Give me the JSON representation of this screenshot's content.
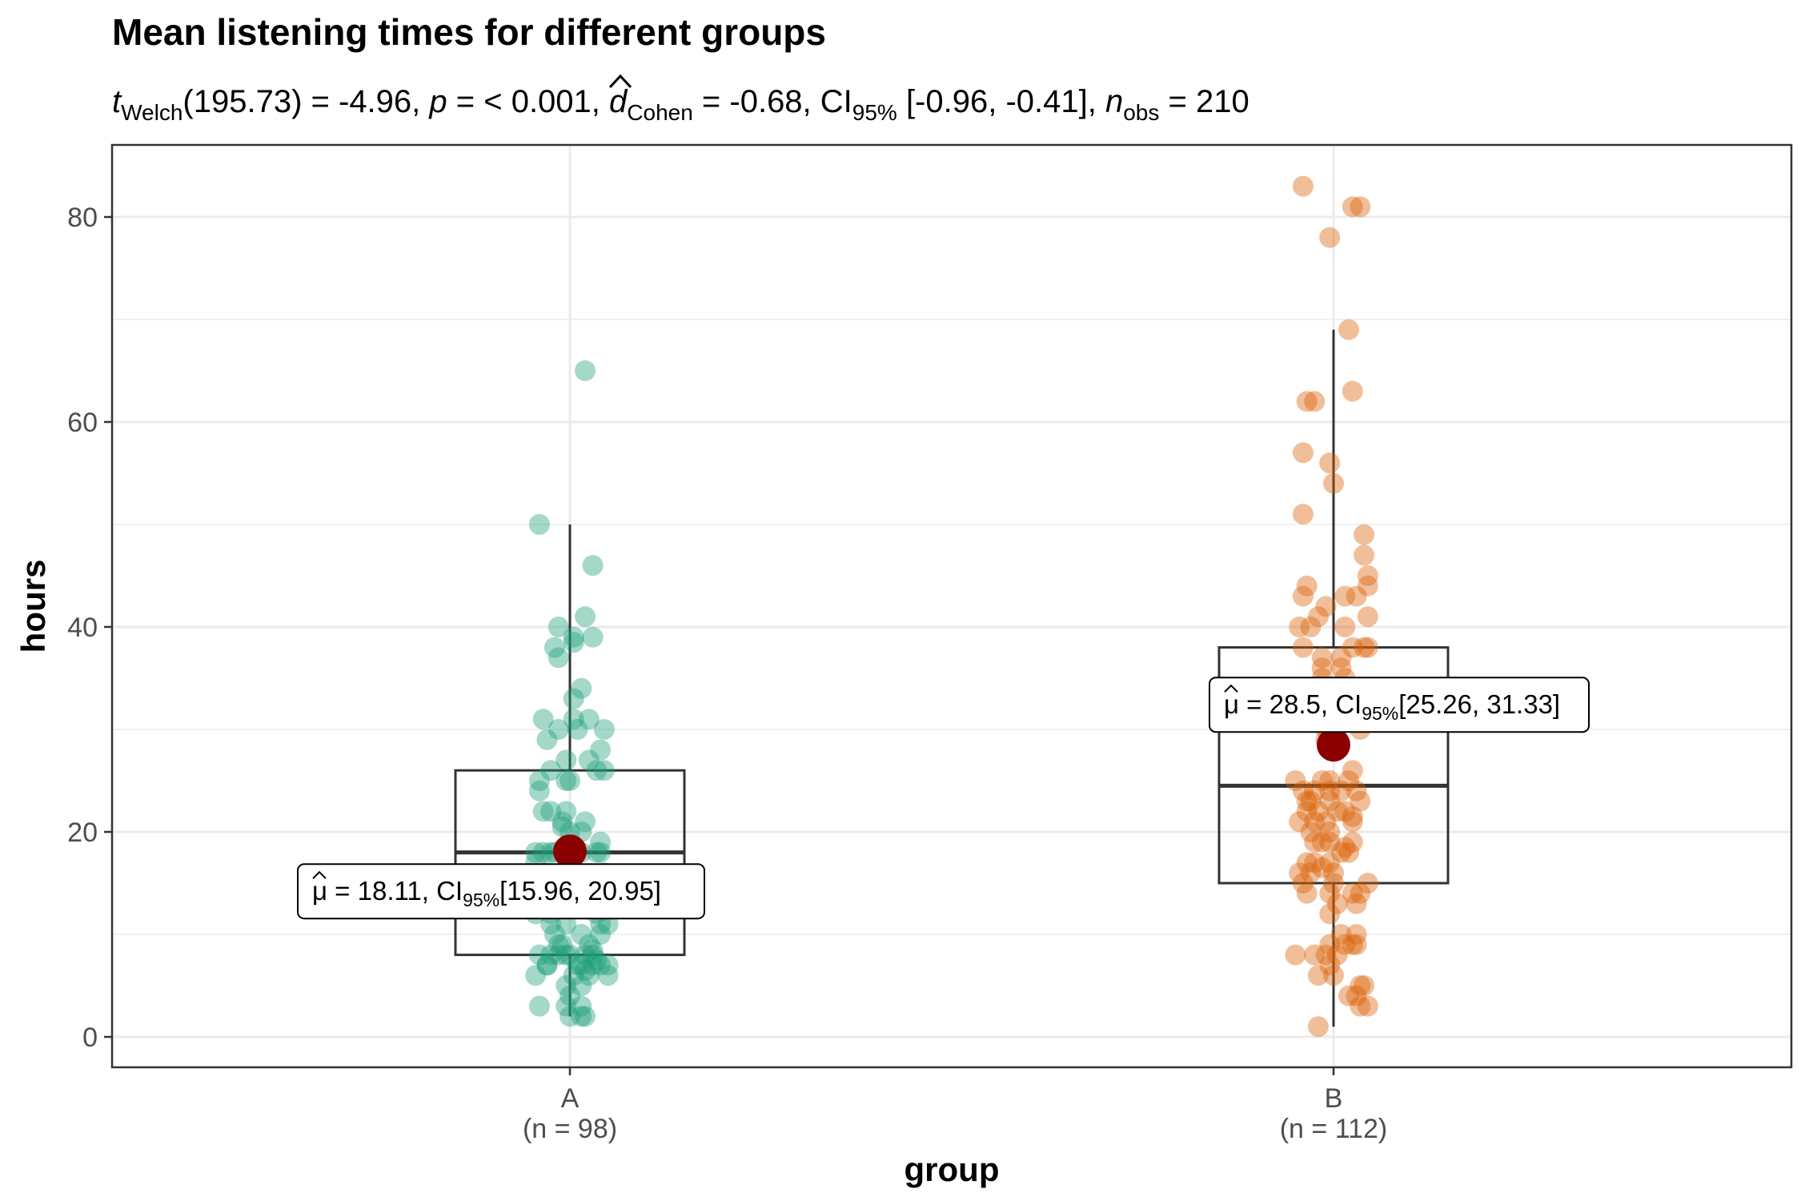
{
  "chart_data": {
    "type": "scatter",
    "title": "Mean listening times for different groups",
    "subtitle": {
      "t_sym": "t",
      "t_sub": "Welch",
      "t_rest": "(195.73) = -4.96, ",
      "p_sym": "p",
      "p_rest": " = < 0.001, ",
      "hat": "^",
      "d_sym": "d",
      "d_sub": "Cohen",
      "d_rest": " = -0.68, CI",
      "ci_sub": "95%",
      "ci_rest": " [-0.96, -0.41], ",
      "n_sym": "n",
      "n_sub": "obs",
      "n_rest": " = 210"
    },
    "xlabel": "group",
    "ylabel": "hours",
    "ylim": [
      -3,
      87
    ],
    "y_ticks": [
      0,
      20,
      40,
      60,
      80
    ],
    "y_tick_labels": [
      "0",
      "20",
      "40",
      "60",
      "80"
    ],
    "grid": true,
    "categories": [
      "A",
      "B"
    ],
    "category_counts": [
      "(n = 98)",
      "(n = 112)"
    ],
    "colors": {
      "A": "#1b9e77",
      "B": "#d95f02",
      "mean": "#8b0000",
      "grid": "#ebebeb",
      "box": "#333333"
    },
    "boxes": [
      {
        "group": "A",
        "q1": 8,
        "median": 18,
        "q3": 26,
        "whisker_low": 2,
        "whisker_high": 50
      },
      {
        "group": "B",
        "q1": 15,
        "median": 24.5,
        "q3": 38,
        "whisker_low": 1,
        "whisker_high": 69
      }
    ],
    "means": [
      {
        "group": "A",
        "mean": 18.11,
        "label_main": "= 18.11, CI",
        "label_sub": "95%",
        "label_rest": "[15.96, 20.95]",
        "mu": "μ",
        "hat": "^"
      },
      {
        "group": "B",
        "mean": 28.5,
        "label_main": "= 28.5, CI",
        "label_sub": "95%",
        "label_rest": "[25.26, 31.33]",
        "mu": "μ",
        "hat": "^"
      }
    ],
    "series": [
      {
        "group": "A",
        "points": [
          [
            -0.08,
            50
          ],
          [
            0.04,
            65
          ],
          [
            0.06,
            46
          ],
          [
            0.04,
            41
          ],
          [
            0.06,
            39
          ],
          [
            -0.03,
            40
          ],
          [
            -0.04,
            38
          ],
          [
            0.01,
            39
          ],
          [
            0.01,
            38.5
          ],
          [
            -0.03,
            37
          ],
          [
            0.03,
            34
          ],
          [
            0.01,
            33
          ],
          [
            0.05,
            31
          ],
          [
            0.01,
            31
          ],
          [
            -0.07,
            31
          ],
          [
            -0.03,
            30
          ],
          [
            0.02,
            30
          ],
          [
            0.09,
            30
          ],
          [
            -0.06,
            29
          ],
          [
            0.08,
            28
          ],
          [
            0.05,
            27
          ],
          [
            -0.01,
            27
          ],
          [
            -0.05,
            26
          ],
          [
            0.07,
            26
          ],
          [
            0.09,
            26
          ],
          [
            -0.08,
            25
          ],
          [
            -0.01,
            25
          ],
          [
            0.0,
            25
          ],
          [
            -0.08,
            24
          ],
          [
            -0.07,
            22
          ],
          [
            -0.05,
            22
          ],
          [
            -0.01,
            22
          ],
          [
            -0.02,
            21
          ],
          [
            0.04,
            21
          ],
          [
            -0.02,
            20.5
          ],
          [
            0.0,
            20
          ],
          [
            0.03,
            20
          ],
          [
            0.08,
            19
          ],
          [
            -0.09,
            18
          ],
          [
            -0.07,
            18
          ],
          [
            -0.05,
            18
          ],
          [
            -0.04,
            18
          ],
          [
            0.03,
            18
          ],
          [
            0.07,
            18
          ],
          [
            0.08,
            18
          ],
          [
            -0.09,
            17
          ],
          [
            0.0,
            17
          ],
          [
            -0.06,
            16
          ],
          [
            -0.03,
            15
          ],
          [
            -0.07,
            14
          ],
          [
            0.03,
            14
          ],
          [
            0.08,
            13
          ],
          [
            0.0,
            13
          ],
          [
            -0.09,
            12
          ],
          [
            -0.05,
            12
          ],
          [
            -0.05,
            11
          ],
          [
            -0.01,
            11
          ],
          [
            0.08,
            11
          ],
          [
            0.1,
            11
          ],
          [
            0.03,
            10
          ],
          [
            -0.04,
            10
          ],
          [
            0.08,
            10
          ],
          [
            -0.02,
            9
          ],
          [
            0.05,
            9
          ],
          [
            0.06,
            8.5
          ],
          [
            -0.03,
            9
          ],
          [
            -0.08,
            8
          ],
          [
            -0.05,
            8
          ],
          [
            -0.03,
            8
          ],
          [
            -0.01,
            8
          ],
          [
            0.04,
            8
          ],
          [
            0.06,
            8
          ],
          [
            0.0,
            8
          ],
          [
            0.07,
            7.5
          ],
          [
            0.06,
            7
          ],
          [
            0.08,
            7
          ],
          [
            0.1,
            7
          ],
          [
            -0.06,
            7
          ],
          [
            0.02,
            7
          ],
          [
            0.03,
            7
          ],
          [
            0.1,
            6
          ],
          [
            -0.09,
            6
          ],
          [
            0.01,
            6
          ],
          [
            0.05,
            6
          ],
          [
            -0.01,
            5
          ],
          [
            0.03,
            5
          ],
          [
            0.04,
            6.5
          ],
          [
            0.0,
            4
          ],
          [
            0.03,
            3
          ],
          [
            -0.08,
            3
          ],
          [
            -0.01,
            3
          ],
          [
            0.04,
            2
          ],
          [
            0.03,
            2
          ],
          [
            0.0,
            2
          ],
          [
            -0.06,
            7
          ],
          [
            0.07,
            12
          ],
          [
            -0.02,
            14
          ],
          [
            0.09,
            16
          ]
        ]
      },
      {
        "group": "B",
        "points": [
          [
            -0.08,
            83
          ],
          [
            0.05,
            81
          ],
          [
            0.07,
            81
          ],
          [
            -0.01,
            78
          ],
          [
            0.04,
            69
          ],
          [
            0.05,
            63
          ],
          [
            -0.07,
            62
          ],
          [
            -0.05,
            62
          ],
          [
            -0.08,
            57
          ],
          [
            -0.01,
            56
          ],
          [
            0.0,
            54
          ],
          [
            -0.08,
            51
          ],
          [
            0.08,
            49
          ],
          [
            0.08,
            47
          ],
          [
            0.09,
            45
          ],
          [
            -0.07,
            44
          ],
          [
            0.09,
            44
          ],
          [
            -0.08,
            43
          ],
          [
            0.03,
            43
          ],
          [
            0.06,
            43
          ],
          [
            -0.02,
            42
          ],
          [
            -0.04,
            41
          ],
          [
            0.09,
            41
          ],
          [
            -0.09,
            40
          ],
          [
            -0.06,
            40
          ],
          [
            0.03,
            40
          ],
          [
            -0.08,
            38
          ],
          [
            0.08,
            38
          ],
          [
            0.09,
            38
          ],
          [
            0.05,
            38
          ],
          [
            -0.03,
            37
          ],
          [
            0.02,
            37
          ],
          [
            -0.03,
            36
          ],
          [
            0.02,
            36
          ],
          [
            -0.03,
            35
          ],
          [
            0.03,
            35
          ],
          [
            0.04,
            33
          ],
          [
            0.07,
            32
          ],
          [
            0.0,
            31
          ],
          [
            0.07,
            30
          ],
          [
            -0.02,
            29
          ],
          [
            0.01,
            28
          ],
          [
            0.05,
            26
          ],
          [
            -0.1,
            25
          ],
          [
            -0.03,
            25
          ],
          [
            -0.01,
            25
          ],
          [
            0.04,
            25
          ],
          [
            -0.08,
            24
          ],
          [
            -0.05,
            24
          ],
          [
            -0.01,
            24
          ],
          [
            0.02,
            24
          ],
          [
            0.06,
            24
          ],
          [
            -0.07,
            23
          ],
          [
            -0.06,
            23
          ],
          [
            -0.01,
            23
          ],
          [
            0.07,
            23
          ],
          [
            -0.07,
            22
          ],
          [
            -0.04,
            22
          ],
          [
            0.01,
            22
          ],
          [
            0.05,
            21.5
          ],
          [
            -0.09,
            21
          ],
          [
            -0.05,
            21
          ],
          [
            -0.02,
            21
          ],
          [
            0.05,
            21
          ],
          [
            -0.06,
            20
          ],
          [
            -0.01,
            20
          ],
          [
            -0.05,
            19
          ],
          [
            -0.03,
            19
          ],
          [
            -0.01,
            19
          ],
          [
            0.05,
            19
          ],
          [
            0.03,
            18.5
          ],
          [
            0.04,
            18
          ],
          [
            0.02,
            18
          ],
          [
            -0.05,
            17
          ],
          [
            -0.07,
            17
          ],
          [
            -0.01,
            17
          ],
          [
            -0.03,
            16.5
          ],
          [
            -0.09,
            16
          ],
          [
            -0.06,
            16
          ],
          [
            0.0,
            16
          ],
          [
            -0.08,
            15
          ],
          [
            0.0,
            15
          ],
          [
            0.09,
            15
          ],
          [
            -0.07,
            14
          ],
          [
            -0.01,
            14
          ],
          [
            0.05,
            14
          ],
          [
            0.07,
            14
          ],
          [
            0.01,
            13
          ],
          [
            0.06,
            13
          ],
          [
            -0.01,
            12
          ],
          [
            0.02,
            10
          ],
          [
            0.06,
            10
          ],
          [
            0.06,
            9
          ],
          [
            0.03,
            9
          ],
          [
            0.05,
            9
          ],
          [
            -0.1,
            8
          ],
          [
            -0.05,
            8
          ],
          [
            -0.02,
            8
          ],
          [
            0.01,
            8
          ],
          [
            -0.01,
            9
          ],
          [
            -0.01,
            7
          ],
          [
            0.0,
            6
          ],
          [
            -0.04,
            6
          ],
          [
            0.07,
            5
          ],
          [
            0.08,
            5
          ],
          [
            0.04,
            4
          ],
          [
            0.06,
            4
          ],
          [
            0.07,
            3
          ],
          [
            0.09,
            3
          ],
          [
            -0.04,
            1
          ],
          [
            0.03,
            22
          ],
          [
            -0.02,
            30
          ]
        ]
      }
    ]
  }
}
